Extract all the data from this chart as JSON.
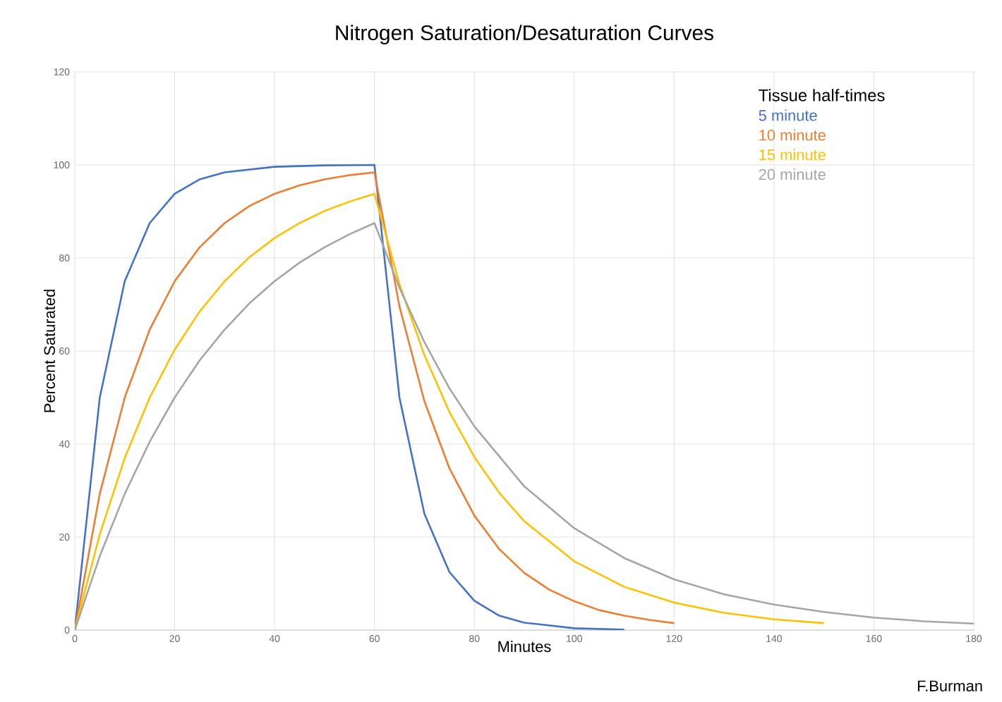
{
  "chart_data": {
    "type": "line",
    "title": "Nitrogen Saturation/Desaturation Curves",
    "xlabel": "Minutes",
    "ylabel": "Percent Saturated",
    "legend_title": "Tissue half-times",
    "legend": "top right",
    "grid": true,
    "marker": "none",
    "line_style": "solid",
    "xlim": [
      0,
      180
    ],
    "xticks": [
      0,
      20,
      40,
      60,
      80,
      100,
      120,
      140,
      160,
      180
    ],
    "ylim": [
      0,
      120
    ],
    "yticks": [
      0,
      20,
      40,
      60,
      80,
      100,
      120
    ],
    "annotations": [
      "F.Burman"
    ],
    "series": [
      {
        "name": "5 minute",
        "color": "#4472c4",
        "x": [
          0,
          5,
          10,
          15,
          20,
          25,
          30,
          40,
          50,
          60,
          65,
          70,
          75,
          80,
          85,
          90,
          100,
          110
        ],
        "values": [
          0,
          50,
          75,
          87.5,
          93.8,
          96.9,
          98.4,
          99.6,
          99.9,
          100,
          50,
          25,
          12.5,
          6.3,
          3.1,
          1.6,
          0.4,
          0.1
        ]
      },
      {
        "name": "10 minute",
        "color": "#ed7d31",
        "x": [
          0,
          5,
          10,
          15,
          20,
          25,
          30,
          35,
          40,
          45,
          50,
          55,
          60,
          65,
          70,
          75,
          80,
          85,
          90,
          95,
          100,
          105,
          110,
          115,
          120
        ],
        "values": [
          0,
          29.3,
          50,
          64.6,
          75,
          82.3,
          87.5,
          91.2,
          93.8,
          95.6,
          96.9,
          97.8,
          98.4,
          69.6,
          49.2,
          34.8,
          24.6,
          17.4,
          12.3,
          8.7,
          6.2,
          4.3,
          3.1,
          2.2,
          1.5
        ]
      },
      {
        "name": "15 minute",
        "color": "#ffc000",
        "x": [
          0,
          5,
          10,
          15,
          20,
          25,
          30,
          35,
          40,
          45,
          50,
          55,
          60,
          65,
          70,
          75,
          80,
          85,
          90,
          100,
          110,
          120,
          130,
          140,
          150
        ],
        "values": [
          0,
          20.6,
          37,
          50,
          60.3,
          68.5,
          75,
          80.2,
          84.3,
          87.5,
          90.1,
          92.1,
          93.8,
          74.4,
          59.1,
          46.9,
          37.2,
          29.5,
          23.4,
          14.8,
          9.3,
          5.9,
          3.7,
          2.3,
          1.5
        ]
      },
      {
        "name": "20 minute",
        "color": "#a5a5a5",
        "x": [
          0,
          5,
          10,
          15,
          20,
          25,
          30,
          35,
          40,
          45,
          50,
          55,
          60,
          65,
          70,
          75,
          80,
          90,
          100,
          110,
          120,
          130,
          140,
          150,
          160,
          170,
          180
        ],
        "values": [
          0,
          15.9,
          29.3,
          40.5,
          50,
          58,
          64.6,
          70.3,
          75,
          79,
          82.3,
          85.1,
          87.5,
          73.6,
          61.9,
          52,
          43.8,
          30.9,
          21.9,
          15.5,
          10.9,
          7.7,
          5.5,
          3.9,
          2.7,
          1.9,
          1.4
        ]
      }
    ]
  }
}
